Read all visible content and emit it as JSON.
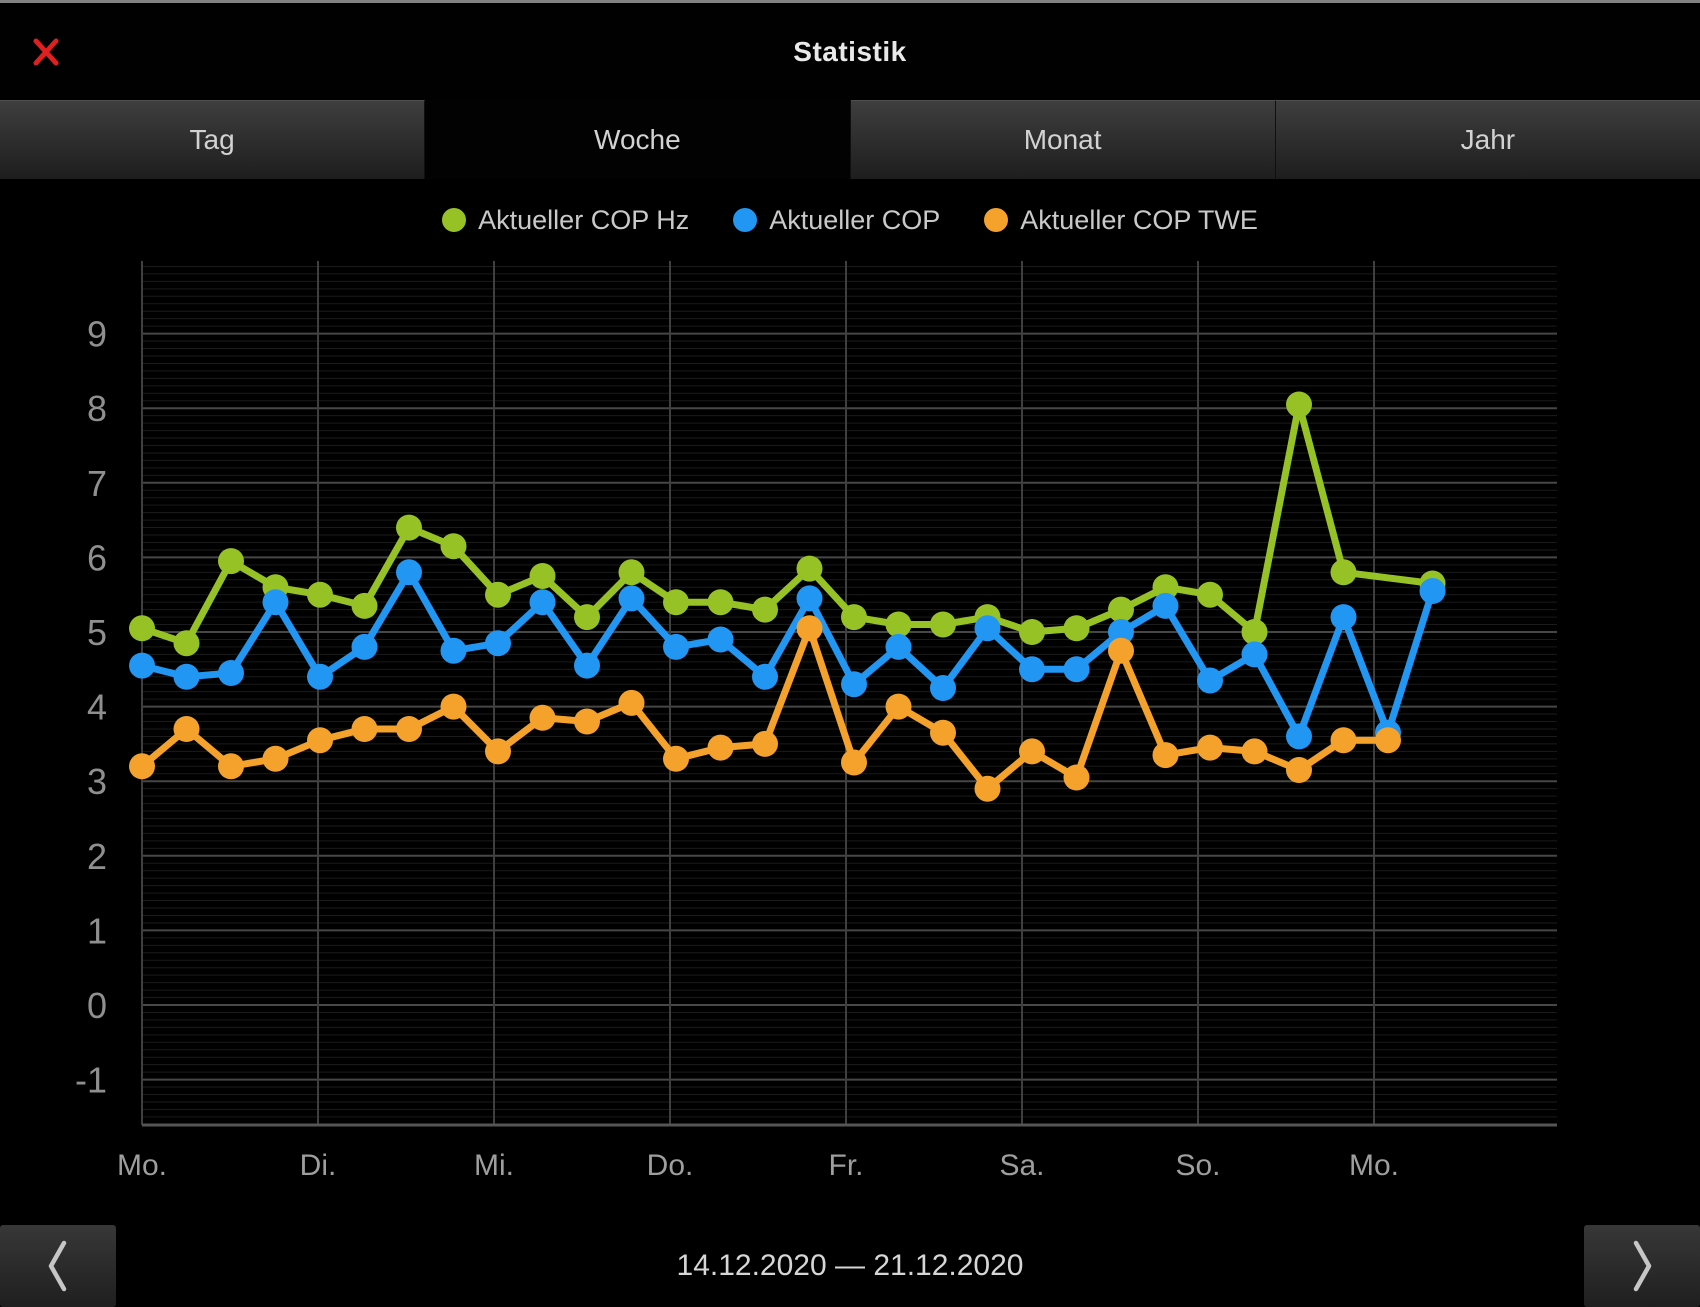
{
  "title": "Statistik",
  "close_symbol": "close",
  "tabs": {
    "items": [
      "Tag",
      "Woche",
      "Monat",
      "Jahr"
    ],
    "selected": "Woche"
  },
  "footer": {
    "date_range": "14.12.2020 — 21.12.2020"
  },
  "colors": {
    "green": "#97c226",
    "blue": "#2196f3",
    "orange": "#f5a22d",
    "axis_text": "#8f8f8f",
    "major_grid": "#474747",
    "minor_grid": "#1b1b1b",
    "close_red": "#e02020",
    "chevron": "#c6c6c6"
  },
  "chart_data": {
    "type": "line",
    "title": "",
    "xlabel": "",
    "ylabel": "",
    "x_tick_labels": [
      "Mo.",
      "Di.",
      "Mi.",
      "Do.",
      "Fr.",
      "Sa.",
      "So.",
      "Mo."
    ],
    "y_ticks": [
      9,
      8,
      7,
      6,
      5,
      4,
      3,
      2,
      1,
      0,
      -1
    ],
    "ylim": [
      -1.6,
      10
    ],
    "points_per_day": 4,
    "grid": true,
    "legend_position": "top",
    "series": [
      {
        "name": "Aktueller COP Hz",
        "color": "#97c226",
        "values": [
          5.05,
          4.85,
          5.95,
          5.6,
          5.5,
          5.35,
          6.4,
          6.15,
          5.5,
          5.75,
          5.2,
          5.8,
          5.4,
          5.4,
          5.3,
          5.85,
          5.2,
          5.1,
          5.1,
          5.2,
          5.0,
          5.05,
          5.3,
          5.6,
          5.5,
          5.0,
          8.05,
          5.8,
          null,
          5.65
        ]
      },
      {
        "name": "Aktueller COP",
        "color": "#2196f3",
        "values": [
          4.55,
          4.4,
          4.45,
          5.4,
          4.4,
          4.8,
          5.8,
          4.75,
          4.85,
          5.4,
          4.55,
          5.45,
          4.8,
          4.9,
          4.4,
          5.45,
          4.3,
          4.8,
          4.25,
          5.05,
          4.5,
          4.5,
          5.0,
          5.35,
          4.35,
          4.7,
          3.6,
          5.2,
          3.65,
          5.55
        ]
      },
      {
        "name": "Aktueller COP TWE",
        "color": "#f5a22d",
        "values": [
          3.2,
          3.7,
          3.2,
          3.3,
          3.55,
          3.7,
          3.7,
          4.0,
          3.4,
          3.85,
          3.8,
          4.05,
          3.3,
          3.45,
          3.5,
          5.05,
          3.25,
          4.0,
          3.65,
          2.9,
          3.4,
          3.05,
          4.75,
          3.35,
          3.45,
          3.4,
          3.15,
          3.55,
          3.55,
          null
        ]
      }
    ]
  }
}
